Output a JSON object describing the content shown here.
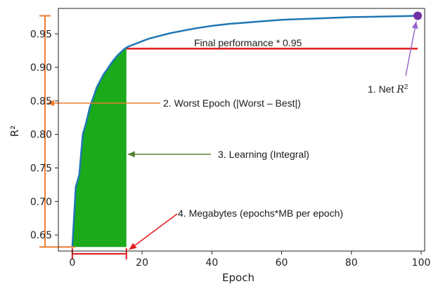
{
  "chart_data": {
    "type": "line",
    "xlabel": "Epoch",
    "ylabel": "R²",
    "xlim": [
      -4,
      101
    ],
    "ylim": [
      0.626,
      0.988
    ],
    "x_ticks": [
      0,
      20,
      40,
      60,
      80,
      100
    ],
    "y_ticks": [
      0.65,
      0.7,
      0.75,
      0.8,
      0.85,
      0.9,
      0.95
    ],
    "grid": false,
    "series": [
      {
        "color": "#1f77b4",
        "x": [
          0,
          1,
          2,
          3,
          4,
          5,
          6,
          7,
          8,
          9,
          10,
          11,
          12,
          13,
          14,
          15,
          16,
          18,
          20,
          22,
          25,
          28,
          30,
          35,
          40,
          45,
          50,
          55,
          60,
          65,
          70,
          75,
          80,
          85,
          90,
          95,
          99
        ],
        "y": [
          0.632,
          0.722,
          0.74,
          0.8,
          0.818,
          0.84,
          0.855,
          0.87,
          0.88,
          0.89,
          0.897,
          0.905,
          0.912,
          0.918,
          0.923,
          0.928,
          0.931,
          0.935,
          0.939,
          0.943,
          0.947,
          0.951,
          0.953,
          0.958,
          0.962,
          0.965,
          0.967,
          0.969,
          0.971,
          0.972,
          0.973,
          0.974,
          0.975,
          0.9755,
          0.976,
          0.9765,
          0.977
        ]
      }
    ],
    "fill_integral": {
      "x_start": 0,
      "x_end": 15.5,
      "color": "#1aaa1a"
    },
    "final_performance_line": {
      "y": 0.928,
      "x_start": 15.5,
      "x_end": 99,
      "color": "#e31a1c",
      "label": "Final performance * 0.95"
    },
    "net_point": {
      "x": 99,
      "y": 0.977,
      "color": "#7030a0"
    },
    "range_bar": {
      "x": -3,
      "y_min": 0.632,
      "y_max": 0.977,
      "color": "#ed7d31"
    },
    "epoch_bar": {
      "y": 0.626,
      "x_start": 0,
      "x_end": 15.5,
      "color": "#e31a1c"
    },
    "annotations": {
      "net": {
        "prefix": "1. Net ",
        "var": "R",
        "sup": "2",
        "color": "#9966cc"
      },
      "worst": {
        "text": "2. Worst Epoch (|Worst – Best|)",
        "color": "#ed7d31"
      },
      "learning": {
        "text": "3. Learning (Integral)",
        "color": "#548235"
      },
      "megabytes": {
        "text": "4. Megabytes (epochs*MB per epoch)",
        "color": "#e31a1c"
      }
    }
  }
}
